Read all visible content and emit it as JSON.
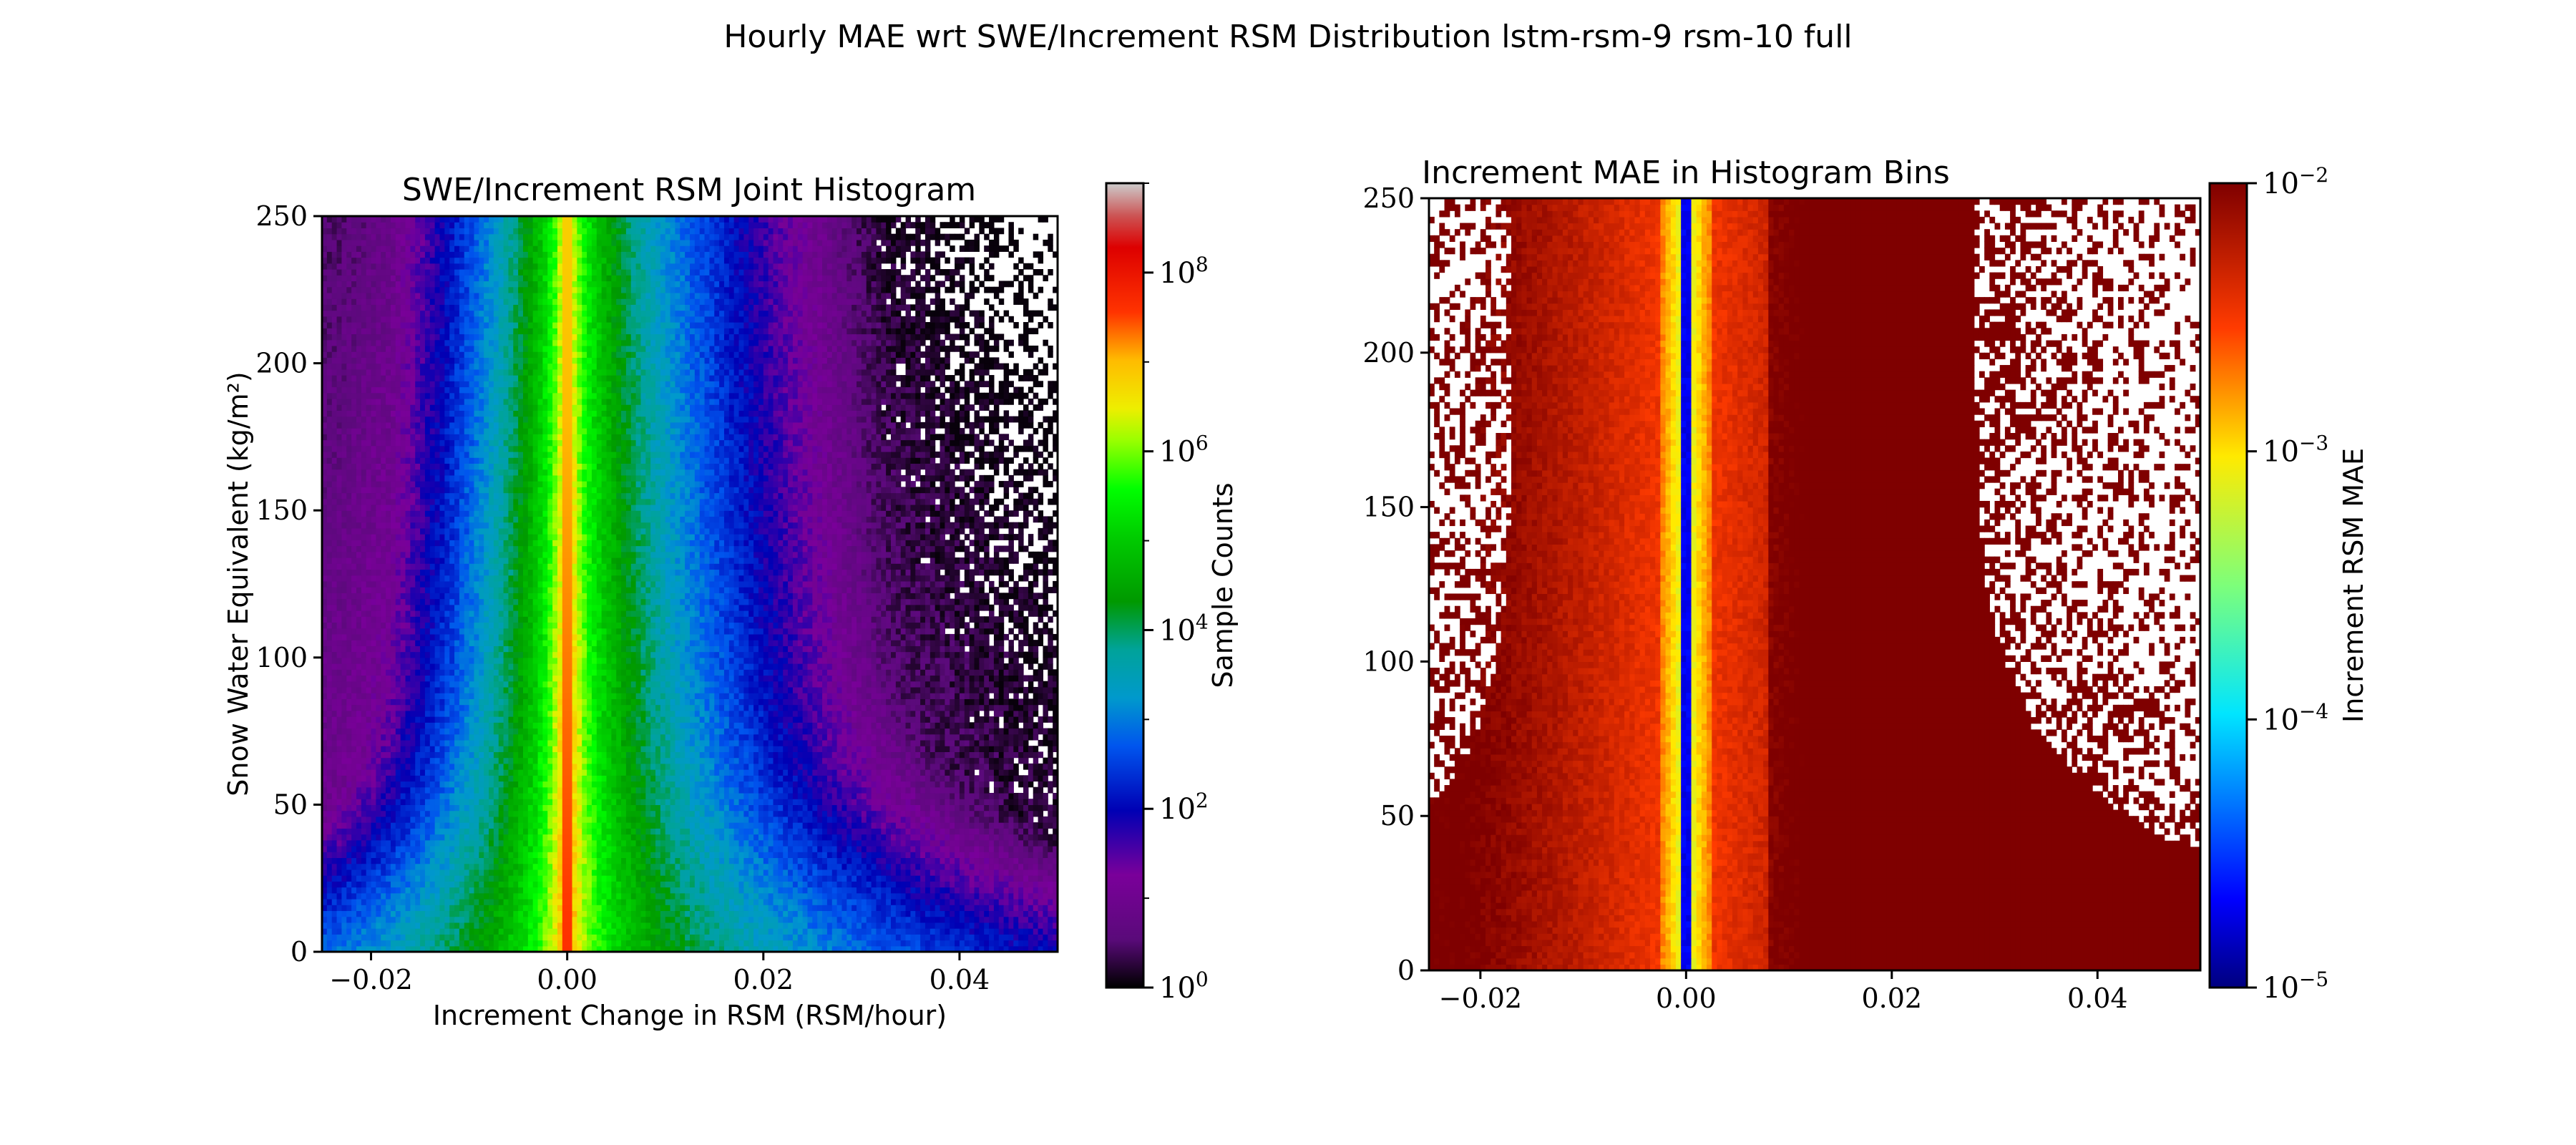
{
  "figure": {
    "suptitle": "Hourly MAE wrt SWE/Increment RSM Distribution lstm-rsm-9 rsm-10 full"
  },
  "chart_data": [
    {
      "type": "heatmap",
      "title": "SWE/Increment RSM Joint Histogram",
      "xlabel": "Increment Change in RSM (RSM/hour)",
      "ylabel": "Snow Water Equivalent (kg/m²)",
      "xlim": [
        -0.025,
        0.05
      ],
      "ylim": [
        0,
        250
      ],
      "xticks": [
        -0.02,
        0.0,
        0.02,
        0.04
      ],
      "xtick_labels": [
        "−0.02",
        "0.00",
        "0.02",
        "0.04"
      ],
      "yticks": [
        0,
        50,
        100,
        150,
        200,
        250
      ],
      "ytick_labels": [
        "0",
        "50",
        "100",
        "150",
        "200",
        "250"
      ],
      "colorbar": {
        "label": "Sample Counts",
        "scale": "log",
        "range": [
          1,
          1000000000
        ],
        "ticks": [
          1,
          100,
          10000,
          1000000,
          100000000
        ],
        "tick_base": "10",
        "tick_exponents": [
          "0",
          "2",
          "4",
          "6",
          "8"
        ],
        "colormap": "nipy_spectral"
      },
      "description_of_values": "Counts peak (~10^7-10^8) along x=0 for all SWE; highest counts near SWE 0-25; spread widens at low SWE, sparse purple (~10^0-10^1) far from zero.",
      "grid": false
    },
    {
      "type": "heatmap",
      "title": "Increment MAE in Histogram Bins",
      "xlabel": "",
      "ylabel": "",
      "xlim": [
        -0.025,
        0.05
      ],
      "ylim": [
        0,
        250
      ],
      "xticks": [
        -0.02,
        0.0,
        0.02,
        0.04
      ],
      "xtick_labels": [
        "−0.02",
        "0.00",
        "0.02",
        "0.04"
      ],
      "yticks": [
        0,
        50,
        100,
        150,
        200,
        250
      ],
      "ytick_labels": [
        "0",
        "50",
        "100",
        "150",
        "200",
        "250"
      ],
      "colorbar": {
        "label": "Increment RSM MAE",
        "scale": "log",
        "range": [
          1e-05,
          0.01
        ],
        "ticks": [
          1e-05,
          0.0001,
          0.001,
          0.01
        ],
        "tick_base": "10",
        "tick_exponents": [
          "−5",
          "−4",
          "−3",
          "−2"
        ],
        "colormap": "jet"
      },
      "description_of_values": "MAE ~10^-5 along x=0, ~10^-3 within |x|<0.003, rising to ~10^-2 for larger |x|; saturated dark red for x>0.01.",
      "grid": false
    }
  ]
}
